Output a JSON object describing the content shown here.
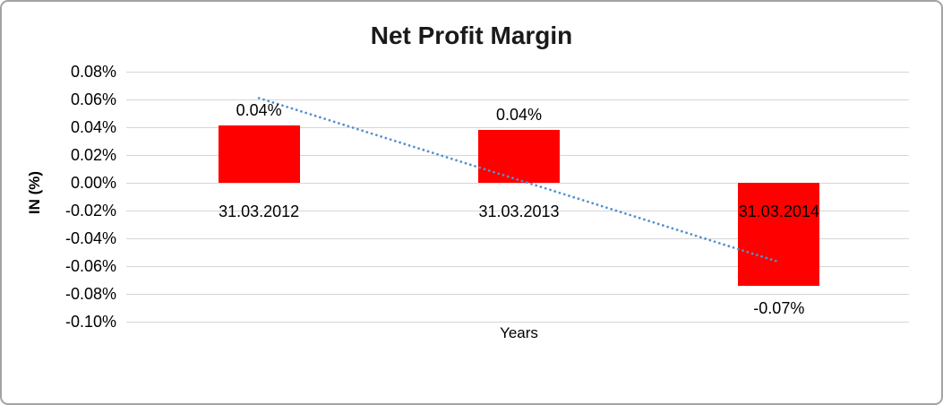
{
  "chart_data": {
    "type": "bar",
    "title": "Net Profit Margin",
    "xlabel": "Years",
    "ylabel": "IN (%)",
    "categories": [
      "31.03.2012",
      "31.03.2013",
      "31.03.2014"
    ],
    "values": [
      0.0415,
      0.038,
      -0.074
    ],
    "value_labels": [
      "0.04%",
      "0.04%",
      "-0.07%"
    ],
    "yticks": [
      "0.08%",
      "0.06%",
      "0.04%",
      "0.02%",
      "0.00%",
      "-0.02%",
      "-0.04%",
      "-0.06%",
      "-0.08%",
      "-0.10%"
    ],
    "ylim": [
      -0.1,
      0.08
    ],
    "grid": "horizontal-major",
    "legend": "none",
    "trendline": {
      "type": "linear",
      "style": "dotted",
      "start_value": 0.061,
      "end_value": -0.057
    }
  },
  "colors": {
    "bar": "#FF0000",
    "trendline": "#5590CE",
    "gridline": "#D6D6D6",
    "text": "#000000",
    "frame_border": "#A3A3A3"
  }
}
